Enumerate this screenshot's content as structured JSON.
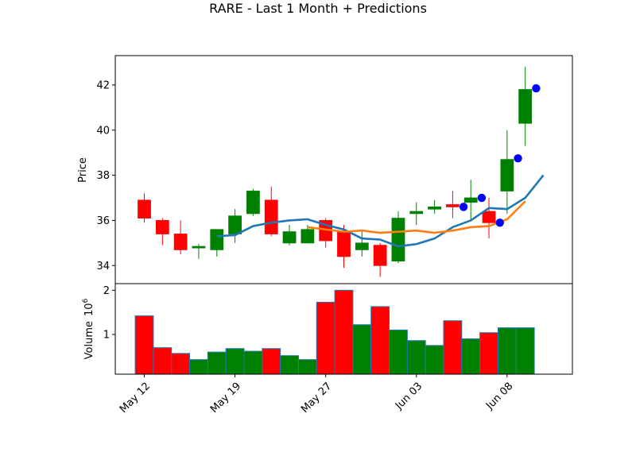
{
  "chart_data": {
    "type": "candlestick",
    "title": "RARE - Last 1 Month + Predictions",
    "price_panel": {
      "ylabel": "Price",
      "ylim": [
        33.2,
        43.3
      ],
      "yticks": [
        34,
        36,
        38,
        40,
        42
      ]
    },
    "volume_panel": {
      "ylabel": "Volume",
      "ylabel_exponent": "10",
      "ylabel_exponent_power": "6",
      "ylim": [
        0.1,
        2.15
      ],
      "yticks": [
        1,
        2
      ]
    },
    "xticks": [
      {
        "label": "May 12",
        "index": 0
      },
      {
        "label": "May 19",
        "index": 5
      },
      {
        "label": "May 27",
        "index": 10
      },
      {
        "label": "Jun 03",
        "index": 15
      },
      {
        "label": "Jun 08",
        "index": 20
      }
    ],
    "xlim": [
      -1.6,
      23.6
    ],
    "candles": [
      {
        "open": 36.9,
        "close": 36.1,
        "high": 37.2,
        "low": 35.9,
        "volume": 1.42
      },
      {
        "open": 36.0,
        "close": 35.4,
        "high": 36.1,
        "low": 34.9,
        "volume": 0.7
      },
      {
        "open": 35.4,
        "close": 34.7,
        "high": 36.0,
        "low": 34.5,
        "volume": 0.57
      },
      {
        "open": 34.8,
        "close": 34.85,
        "high": 34.95,
        "low": 34.3,
        "volume": 0.43
      },
      {
        "open": 34.7,
        "close": 35.6,
        "high": 35.6,
        "low": 34.4,
        "volume": 0.6
      },
      {
        "open": 35.4,
        "close": 36.2,
        "high": 36.5,
        "low": 35.0,
        "volume": 0.68
      },
      {
        "open": 36.3,
        "close": 37.3,
        "high": 37.4,
        "low": 36.2,
        "volume": 0.62
      },
      {
        "open": 36.9,
        "close": 35.4,
        "high": 37.5,
        "low": 35.3,
        "volume": 0.68
      },
      {
        "open": 35.0,
        "close": 35.5,
        "high": 35.8,
        "low": 34.9,
        "volume": 0.52
      },
      {
        "open": 35.0,
        "close": 35.6,
        "high": 35.8,
        "low": 35.0,
        "volume": 0.43
      },
      {
        "open": 36.0,
        "close": 35.1,
        "high": 36.1,
        "low": 34.8,
        "volume": 1.73
      },
      {
        "open": 35.5,
        "close": 34.4,
        "high": 35.8,
        "low": 33.9,
        "volume": 2.0
      },
      {
        "open": 34.7,
        "close": 35.0,
        "high": 35.5,
        "low": 34.4,
        "volume": 1.22
      },
      {
        "open": 34.9,
        "close": 34.0,
        "high": 35.0,
        "low": 33.5,
        "volume": 1.63
      },
      {
        "open": 34.2,
        "close": 36.1,
        "high": 36.4,
        "low": 34.1,
        "volume": 1.1
      },
      {
        "open": 36.3,
        "close": 36.4,
        "high": 36.8,
        "low": 35.8,
        "volume": 0.86
      },
      {
        "open": 36.5,
        "close": 36.6,
        "high": 36.9,
        "low": 36.3,
        "volume": 0.75
      },
      {
        "open": 36.7,
        "close": 36.6,
        "high": 37.3,
        "low": 36.1,
        "volume": 1.31
      },
      {
        "open": 36.8,
        "close": 37.0,
        "high": 37.8,
        "low": 36.0,
        "volume": 0.9
      },
      {
        "open": 36.4,
        "close": 35.9,
        "high": 37.0,
        "low": 35.2,
        "volume": 1.04
      },
      {
        "open": 37.3,
        "close": 38.7,
        "high": 40.0,
        "low": 36.3,
        "volume": 1.15
      },
      {
        "open": 40.3,
        "close": 41.8,
        "high": 42.8,
        "low": 39.3,
        "volume": 1.15
      }
    ],
    "ma_short": [
      {
        "index": 4,
        "value": 35.3
      },
      {
        "index": 5,
        "value": 35.35
      },
      {
        "index": 6,
        "value": 35.75
      },
      {
        "index": 7,
        "value": 35.9
      },
      {
        "index": 8,
        "value": 36.0
      },
      {
        "index": 9,
        "value": 36.05
      },
      {
        "index": 10,
        "value": 35.8
      },
      {
        "index": 11,
        "value": 35.6
      },
      {
        "index": 12,
        "value": 35.2
      },
      {
        "index": 13,
        "value": 35.15
      },
      {
        "index": 14,
        "value": 34.85
      },
      {
        "index": 15,
        "value": 34.95
      },
      {
        "index": 16,
        "value": 35.2
      },
      {
        "index": 17,
        "value": 35.7
      },
      {
        "index": 18,
        "value": 36.0
      },
      {
        "index": 19,
        "value": 36.55
      },
      {
        "index": 20,
        "value": 36.5
      },
      {
        "index": 21,
        "value": 37.0
      },
      {
        "index": 22,
        "value": 38.0
      }
    ],
    "ma_long": [
      {
        "index": 9,
        "value": 35.7
      },
      {
        "index": 10,
        "value": 35.6
      },
      {
        "index": 11,
        "value": 35.5
      },
      {
        "index": 12,
        "value": 35.55
      },
      {
        "index": 13,
        "value": 35.45
      },
      {
        "index": 14,
        "value": 35.5
      },
      {
        "index": 15,
        "value": 35.55
      },
      {
        "index": 16,
        "value": 35.45
      },
      {
        "index": 17,
        "value": 35.55
      },
      {
        "index": 18,
        "value": 35.7
      },
      {
        "index": 19,
        "value": 35.75
      },
      {
        "index": 20,
        "value": 36.05
      },
      {
        "index": 21,
        "value": 36.85
      }
    ],
    "predictions": [
      {
        "index": 17.6,
        "value": 36.6
      },
      {
        "index": 18.6,
        "value": 37.0
      },
      {
        "index": 19.6,
        "value": 35.9
      },
      {
        "index": 20.6,
        "value": 38.75
      },
      {
        "index": 21.6,
        "value": 41.85
      }
    ],
    "colors": {
      "up": "#008000",
      "down": "#ff0000",
      "ma_short": "#1f77b4",
      "ma_long": "#ff7f0e",
      "prediction": "#0000ff",
      "volume_edge": "#1f77b4"
    }
  }
}
